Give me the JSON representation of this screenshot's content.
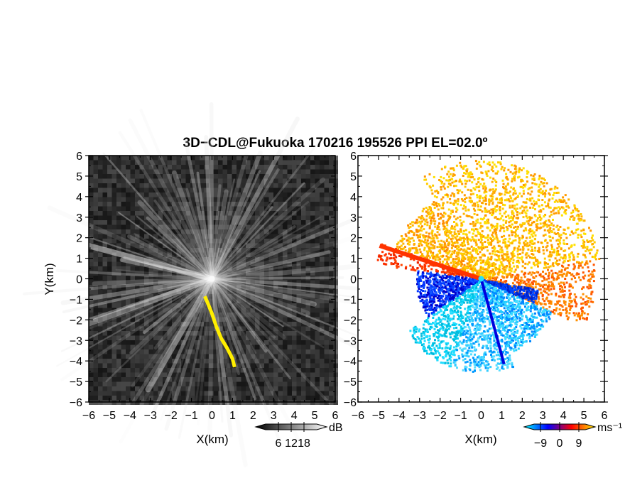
{
  "title": "3D−CDL@Fukuoka 170216 195526 PPI EL=02.0º",
  "chart_data": [
    {
      "panel": "left",
      "type": "heatmap",
      "xlabel": "X(km)",
      "ylabel": "Y(km)",
      "xlim": [
        -6,
        6
      ],
      "ylim": [
        -6,
        6
      ],
      "xticks": [
        "−6",
        "−5",
        "−4",
        "−3",
        "−2",
        "−1",
        "0",
        "1",
        "2",
        "3",
        "4",
        "5",
        "6"
      ],
      "yticks": [
        "6",
        "5",
        "4",
        "3",
        "2",
        "1",
        "0",
        "−1",
        "−2",
        "−3",
        "−4",
        "−5",
        "−6"
      ],
      "colorbar": {
        "unit": "dB",
        "ticks": [
          "6",
          "12",
          "18"
        ],
        "tick_values": [
          6,
          12,
          18
        ],
        "range": [
          0,
          24
        ],
        "colors": [
          "#000000",
          "#ffffff"
        ]
      },
      "highlight_track": {
        "color": "#ffee00",
        "points": [
          [
            -0.35,
            -0.85
          ],
          [
            -0.2,
            -1.2
          ],
          [
            0.0,
            -1.7
          ],
          [
            0.2,
            -2.3
          ],
          [
            0.45,
            -2.9
          ],
          [
            0.75,
            -3.4
          ],
          [
            1.0,
            -3.9
          ],
          [
            1.1,
            -4.3
          ]
        ]
      }
    },
    {
      "panel": "right",
      "type": "heatmap",
      "xlabel": "X(km)",
      "xlim": [
        -6,
        6
      ],
      "ylim": [
        -6,
        6
      ],
      "xticks": [
        "−6",
        "−5",
        "−4",
        "−3",
        "−2",
        "−1",
        "0",
        "1",
        "2",
        "3",
        "4",
        "5",
        "6"
      ],
      "yticks": [
        "6",
        "5",
        "4",
        "3",
        "2",
        "1",
        "0",
        "−1",
        "−2",
        "−3",
        "−4",
        "−5",
        "−6"
      ],
      "colorbar": {
        "unit": "ms⁻¹",
        "ticks": [
          "−9",
          "0",
          "9"
        ],
        "tick_values": [
          -9,
          0,
          9
        ],
        "range": [
          -12,
          12
        ],
        "colors": [
          "#00ffff",
          "#0000ff",
          "#ff0000",
          "#ffee00"
        ]
      }
    }
  ]
}
